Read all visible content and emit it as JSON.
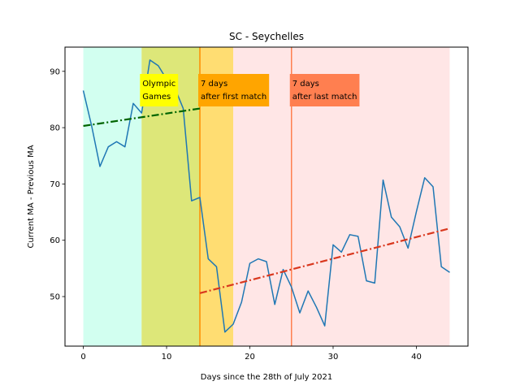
{
  "chart_data": {
    "type": "line",
    "title": "SC - Seychelles",
    "xlabel": "Days since the 28th of July 2021",
    "ylabel": "Current MA - Previous MA",
    "xlim": [
      -2.2,
      46.2
    ],
    "ylim": [
      41.2,
      94.3
    ],
    "xticks": [
      0,
      10,
      20,
      30,
      40
    ],
    "yticks": [
      50,
      60,
      70,
      80,
      90
    ],
    "grid": false,
    "series": [
      {
        "color": "#1f77b4",
        "x": [
          0,
          1,
          2,
          3,
          4,
          5,
          6,
          7,
          8,
          9,
          10,
          11,
          12,
          13,
          14,
          15,
          16,
          17,
          18,
          19,
          20,
          21,
          22,
          23,
          24,
          25,
          26,
          27,
          28,
          29,
          30,
          31,
          32,
          33,
          34,
          35,
          36,
          37,
          38,
          39,
          40,
          41,
          42,
          43,
          44
        ],
        "y": [
          86.6,
          80.3,
          73.1,
          76.6,
          77.5,
          76.6,
          84.3,
          82.6,
          92.0,
          91.0,
          88.6,
          87.0,
          83.4,
          67.0,
          67.6,
          56.7,
          55.3,
          43.7,
          45.1,
          49.0,
          55.9,
          56.7,
          56.2,
          48.6,
          54.8,
          51.7,
          47.1,
          51.0,
          48.1,
          44.8,
          59.2,
          57.9,
          61.0,
          60.7,
          52.8,
          52.4,
          70.7,
          64.1,
          62.4,
          58.6,
          65.1,
          71.1,
          69.5,
          55.3,
          54.3
        ]
      }
    ],
    "trend_lines": [
      {
        "color": "#006400",
        "x": [
          0,
          14
        ],
        "y": [
          80.3,
          83.4
        ]
      },
      {
        "color": "#d9381e",
        "x": [
          14,
          44
        ],
        "y": [
          50.6,
          62.1
        ]
      }
    ],
    "regions": [
      {
        "x0": 0,
        "x1": 7,
        "color": "#7fffd4",
        "alpha": 0.35
      },
      {
        "x0": 7,
        "x1": 14,
        "color": "#d4e157",
        "alpha": 0.8
      },
      {
        "x0": 14,
        "x1": 18,
        "color": "#ffd54f",
        "alpha": 0.8
      },
      {
        "x0": 18,
        "x1": 44,
        "color": "#ffb6b6",
        "alpha": 0.35
      }
    ],
    "vlines": [
      {
        "x": 14,
        "color": "#ff8c00"
      },
      {
        "x": 25,
        "color": "#ff7f50"
      }
    ],
    "annotations": [
      {
        "x": 7,
        "line1": "Olympic",
        "line2": "Games",
        "bg": "#ffff00"
      },
      {
        "x": 14,
        "line1": "7 days",
        "line2": "after first match",
        "bg": "#ffa500"
      },
      {
        "x": 25,
        "line1": "7 days",
        "line2": "after last match",
        "bg": "#ff7f50"
      }
    ]
  }
}
